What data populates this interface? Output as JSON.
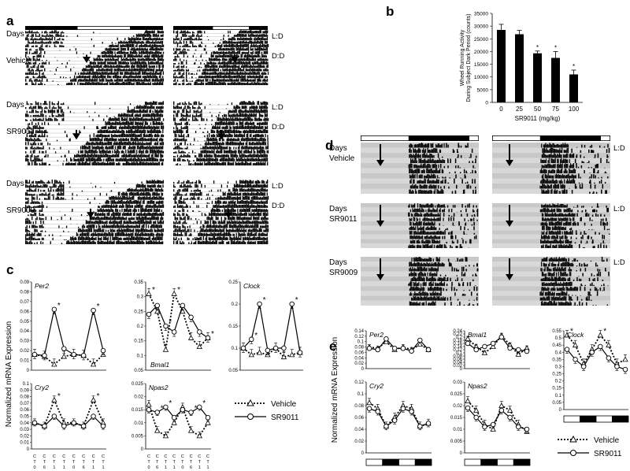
{
  "panel_letters": [
    "a",
    "b",
    "c",
    "d",
    "e"
  ],
  "panel_a": {
    "days_label": "Days",
    "ld_label": "L:D",
    "dd_label": "D:D",
    "groups": [
      "Vehicle",
      "SR9011",
      "SR9009"
    ]
  },
  "panel_d": {
    "days_label": "Days",
    "ld_label": "L:D",
    "groups": [
      "Vehicle",
      "SR9011",
      "SR9009"
    ]
  },
  "chart_data": [
    {
      "panel": "b",
      "type": "bar",
      "categories": [
        "0",
        "25",
        "50",
        "75",
        "100"
      ],
      "values": [
        28500,
        26800,
        19300,
        17500,
        11000
      ],
      "errors": [
        2200,
        1500,
        900,
        2500,
        1700
      ],
      "significant": [
        "",
        "",
        "*",
        "*",
        "*"
      ],
      "xlabel": "SR9011 (mg/kg)",
      "ylabel_line1": "Wheel Running Activity",
      "ylabel_line2": "During Subject Dark Period (counts)",
      "ylim": [
        0,
        35000
      ],
      "yticks": [
        "0",
        "5000",
        "10000",
        "15000",
        "20000",
        "25000",
        "30000",
        "35000"
      ]
    },
    {
      "panel": "c",
      "type": "line",
      "ylabel": "Normalized mRNA Expression",
      "ct_labels": [
        [
          "C",
          "T",
          "0"
        ],
        [
          "C",
          "T",
          "6"
        ],
        [
          "C",
          "T",
          "1",
          "2"
        ],
        [
          "C",
          "T",
          "1",
          "8"
        ],
        [
          "C",
          "T",
          "0"
        ],
        [
          "C",
          "T",
          "6"
        ],
        [
          "C",
          "T",
          "1",
          "2"
        ],
        [
          "C",
          "T",
          "1",
          "8"
        ]
      ],
      "legend": {
        "vehicle": "Vehicle",
        "drug": "SR9011"
      },
      "subplots": [
        {
          "gene": "Per2",
          "ylim": [
            0,
            0.09
          ],
          "yticks": [
            "0",
            "0.01",
            "0.02",
            "0.03",
            "0.04",
            "0.05",
            "0.06",
            "0.07",
            "0.08",
            "0.09"
          ],
          "vehicle": [
            0.016,
            0.014,
            0.006,
            0.014,
            0.016,
            0.015,
            0.006,
            0.016
          ],
          "drug": [
            0.016,
            0.015,
            0.062,
            0.022,
            0.016,
            0.015,
            0.061,
            0.02
          ],
          "stars_at": [
            2,
            6
          ]
        },
        {
          "gene": "Bmal1",
          "ylim": [
            0.05,
            0.35
          ],
          "yticks": [
            "0.05",
            "0.1",
            "0.15",
            "0.2",
            "0.25",
            "0.3",
            "0.35"
          ],
          "vehicle": [
            0.31,
            0.25,
            0.12,
            0.31,
            0.25,
            0.16,
            0.13,
            0.16
          ],
          "drug": [
            0.24,
            0.27,
            0.2,
            0.18,
            0.27,
            0.23,
            0.18,
            0.16
          ],
          "stars_at": [
            0,
            2,
            3,
            7
          ]
        },
        {
          "gene": "Clock",
          "ylim": [
            0.05,
            0.25
          ],
          "yticks": [
            "0.05",
            "0.1",
            "0.15",
            "0.2",
            "0.25"
          ],
          "vehicle": [
            0.1,
            0.085,
            0.09,
            0.085,
            0.1,
            0.08,
            0.085,
            0.09
          ],
          "drug": [
            0.1,
            0.12,
            0.2,
            0.095,
            0.1,
            0.1,
            0.2,
            0.09
          ],
          "stars_at": [
            1,
            2,
            6
          ]
        },
        {
          "gene": "Cry2",
          "ylim": [
            0,
            0.1
          ],
          "yticks": [
            "0",
            "0.01",
            "0.02",
            "0.03",
            "0.04",
            "0.05",
            "0.06",
            "0.07",
            "0.08",
            "0.09",
            "0.1"
          ],
          "vehicle": [
            0.04,
            0.035,
            0.075,
            0.04,
            0.04,
            0.035,
            0.075,
            0.04
          ],
          "drug": [
            0.04,
            0.035,
            0.05,
            0.035,
            0.04,
            0.035,
            0.05,
            0.035
          ],
          "stars_at": [
            2,
            6
          ]
        },
        {
          "gene": "Npas2",
          "ylim": [
            0,
            0.025
          ],
          "yticks": [
            "0",
            "0.005",
            "0.01",
            "0.015",
            "0.02",
            "0.025"
          ],
          "vehicle": [
            0.017,
            0.007,
            0.005,
            0.01,
            0.016,
            0.007,
            0.005,
            0.01
          ],
          "drug": [
            0.015,
            0.014,
            0.016,
            0.012,
            0.015,
            0.014,
            0.016,
            0.012
          ],
          "stars_at": [
            1,
            2,
            5,
            6
          ]
        }
      ]
    },
    {
      "panel": "e",
      "type": "line",
      "ylabel": "Normalized mRNA Expression",
      "legend": {
        "vehicle": "Vehicle",
        "drug": "SR9011"
      },
      "subplots": [
        {
          "gene": "Per2",
          "ylim": [
            0,
            0.14
          ],
          "yticks": [
            "0",
            "0.02",
            "0.04",
            "0.06",
            "0.08",
            "0.1",
            "0.12",
            "0.14"
          ],
          "vehicle": [
            0.08,
            0.075,
            0.1,
            0.07,
            0.08,
            0.07,
            0.09,
            0.07
          ],
          "drug": [
            0.075,
            0.07,
            0.11,
            0.075,
            0.075,
            0.065,
            0.105,
            0.07
          ],
          "stars_at": []
        },
        {
          "gene": "Bmal1",
          "ylim": [
            0,
            0.24
          ],
          "yticks": [
            "0",
            "0.02",
            "0.04",
            "0.06",
            "0.08",
            "0.1",
            "0.12",
            "0.14",
            "0.16",
            "0.18",
            "0.2",
            "0.22",
            "0.24"
          ],
          "vehicle": [
            0.19,
            0.14,
            0.1,
            0.14,
            0.21,
            0.15,
            0.09,
            0.13
          ],
          "drug": [
            0.16,
            0.12,
            0.14,
            0.16,
            0.2,
            0.13,
            0.12,
            0.11
          ],
          "stars_at": []
        },
        {
          "gene": "Clock",
          "ylim": [
            0,
            0.55
          ],
          "yticks": [
            "0",
            "0.05",
            "0.1",
            "0.15",
            "0.2",
            "0.25",
            "0.3",
            "0.35",
            "0.4",
            "0.45",
            "0.5",
            "0.55"
          ],
          "vehicle": [
            0.52,
            0.45,
            0.32,
            0.42,
            0.52,
            0.45,
            0.32,
            0.35
          ],
          "drug": [
            0.42,
            0.35,
            0.3,
            0.4,
            0.44,
            0.36,
            0.3,
            0.28
          ],
          "stars_at": [
            0,
            4
          ]
        },
        {
          "gene": "Cry2",
          "ylim": [
            0,
            0.12
          ],
          "yticks": [
            "0",
            "0.02",
            "0.04",
            "0.06",
            "0.08",
            "0.1",
            "0.12"
          ],
          "vehicle": [
            0.085,
            0.075,
            0.045,
            0.06,
            0.08,
            0.075,
            0.045,
            0.05
          ],
          "drug": [
            0.075,
            0.07,
            0.045,
            0.055,
            0.075,
            0.07,
            0.045,
            0.05
          ],
          "stars_at": []
        },
        {
          "gene": "Npas2",
          "ylim": [
            0,
            0.03
          ],
          "yticks": [
            "0",
            "0.005",
            "0.01",
            "0.015",
            "0.02",
            "0.025",
            "0.03"
          ],
          "vehicle": [
            0.022,
            0.018,
            0.012,
            0.01,
            0.02,
            0.018,
            0.012,
            0.009
          ],
          "drug": [
            0.019,
            0.015,
            0.011,
            0.012,
            0.018,
            0.015,
            0.011,
            0.01
          ],
          "stars_at": []
        }
      ]
    }
  ]
}
